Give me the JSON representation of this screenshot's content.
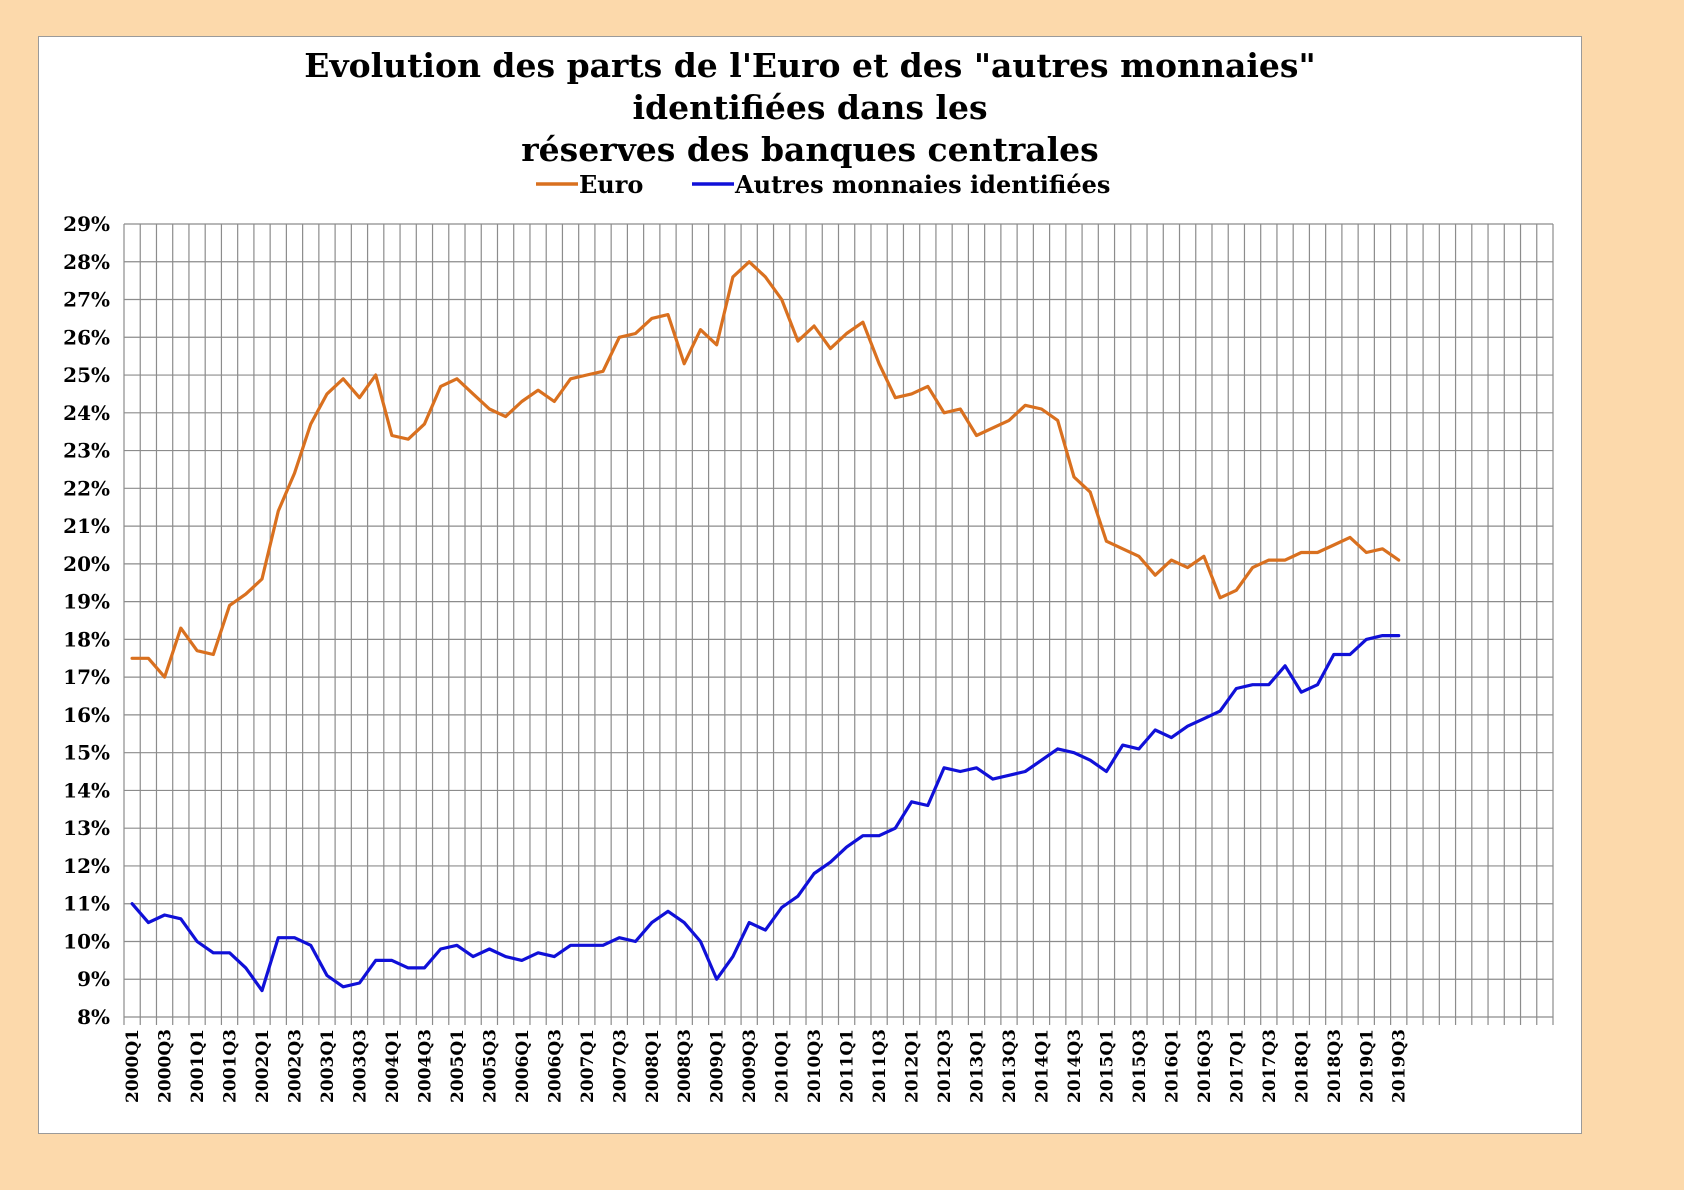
{
  "chart_data": {
    "type": "line",
    "title_lines": [
      "Evolution des parts de l'Euro et des \"autres monnaies\" identifiées dans les",
      "réserves des banques centrales"
    ],
    "xlabel": "",
    "ylabel": "",
    "ylim": [
      8,
      29
    ],
    "y_ticks": [
      "8%",
      "9%",
      "10%",
      "11%",
      "12%",
      "13%",
      "14%",
      "15%",
      "16%",
      "17%",
      "18%",
      "19%",
      "20%",
      "21%",
      "22%",
      "23%",
      "24%",
      "25%",
      "26%",
      "27%",
      "28%",
      "29%"
    ],
    "x_tick_labels": [
      "2000Q1",
      "2000Q3",
      "2001Q1",
      "2001Q3",
      "2002Q1",
      "2002Q3",
      "2003Q1",
      "2003Q3",
      "2004Q1",
      "2004Q3",
      "2005Q1",
      "2005Q3",
      "2006Q1",
      "2006Q3",
      "2007Q1",
      "2007Q3",
      "2008Q1",
      "2008Q3",
      "2009Q1",
      "2009Q3",
      "2010Q1",
      "2010Q3",
      "2011Q1",
      "2011Q3",
      "2012Q1",
      "2012Q3",
      "2013Q1",
      "2013Q3",
      "2014Q1",
      "2014Q3",
      "2015Q1",
      "2015Q3",
      "2016Q1",
      "2016Q3",
      "2017Q1",
      "2017Q3",
      "2018Q1",
      "2018Q3",
      "2019Q1",
      "2019Q3"
    ],
    "grid": true,
    "legend_position": "top-center",
    "series": [
      {
        "name": "Euro",
        "color": "#d9701f",
        "values": [
          17.5,
          17.5,
          17.0,
          18.3,
          17.7,
          17.6,
          18.9,
          19.2,
          19.6,
          21.4,
          22.4,
          23.7,
          24.5,
          24.9,
          24.4,
          25.0,
          23.4,
          23.3,
          23.7,
          24.7,
          24.9,
          24.5,
          24.1,
          23.9,
          24.3,
          24.6,
          24.3,
          24.9,
          25.0,
          25.1,
          26.0,
          26.1,
          26.5,
          26.6,
          25.3,
          26.2,
          25.8,
          27.6,
          28.0,
          27.6,
          27.0,
          25.9,
          26.3,
          25.7,
          26.1,
          26.4,
          25.3,
          24.4,
          24.5,
          24.7,
          24.0,
          24.1,
          23.4,
          23.6,
          23.8,
          24.2,
          24.1,
          23.8,
          22.3,
          21.9,
          20.6,
          20.4,
          20.2,
          19.7,
          20.1,
          19.9,
          20.2,
          19.1,
          19.3,
          19.9,
          20.1,
          20.1,
          20.3,
          20.3,
          20.5,
          20.7,
          20.3,
          20.4,
          20.1
        ]
      },
      {
        "name": "Autres monnaies identifiées",
        "color": "#1010d8",
        "values": [
          11.0,
          10.5,
          10.7,
          10.6,
          10.0,
          9.7,
          9.7,
          9.3,
          8.7,
          10.1,
          10.1,
          9.9,
          9.1,
          8.8,
          8.9,
          9.5,
          9.5,
          9.3,
          9.3,
          9.8,
          9.9,
          9.6,
          9.8,
          9.6,
          9.5,
          9.7,
          9.6,
          9.9,
          9.9,
          9.9,
          10.1,
          10.0,
          10.5,
          10.8,
          10.5,
          10.0,
          9.0,
          9.6,
          10.5,
          10.3,
          10.9,
          11.2,
          11.8,
          12.1,
          12.5,
          12.8,
          12.8,
          13.0,
          13.7,
          13.6,
          14.6,
          14.5,
          14.6,
          14.3,
          14.4,
          14.5,
          14.8,
          15.1,
          15.0,
          14.8,
          14.5,
          15.2,
          15.1,
          15.6,
          15.4,
          15.7,
          15.9,
          16.1,
          16.7,
          16.8,
          16.8,
          17.3,
          16.6,
          16.8,
          17.6,
          17.6,
          18.0,
          18.1,
          18.1
        ]
      }
    ]
  }
}
